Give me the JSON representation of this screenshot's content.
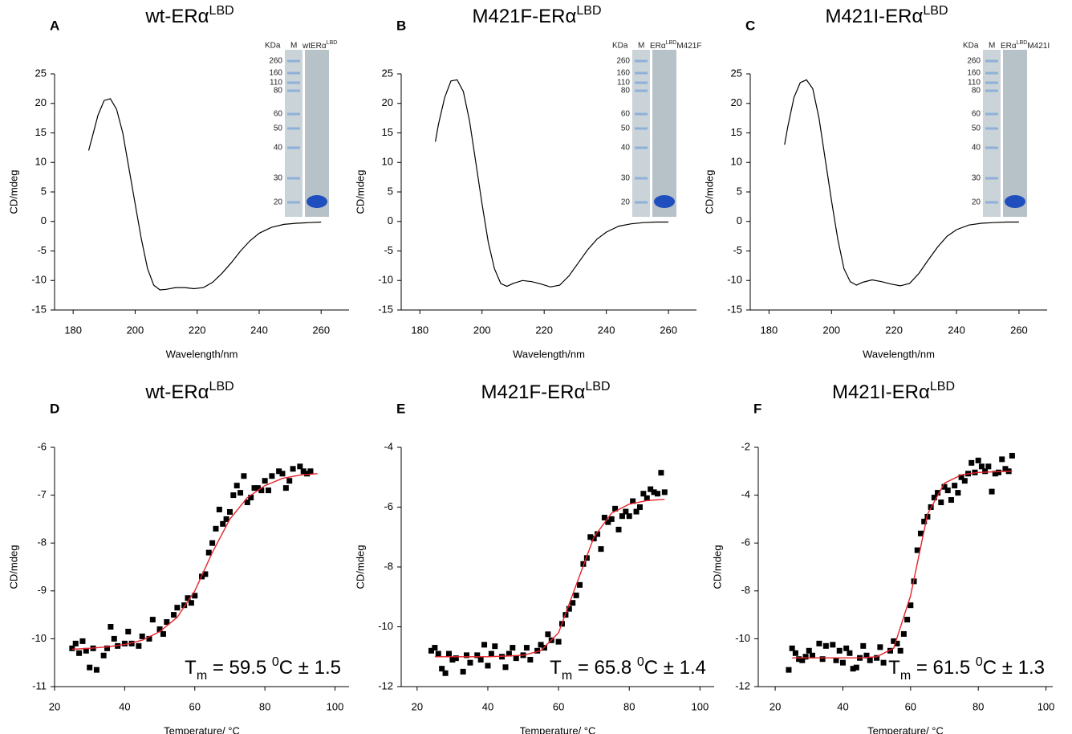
{
  "chart_data": [
    {
      "type": "line",
      "panel": "A",
      "title": {
        "parts": [
          "wt-ERα",
          "LBD"
        ],
        "styles": [
          "normal",
          "sup"
        ]
      },
      "x_label": "Wavelength/nm",
      "y_label": "CD/mdeg",
      "xlim": [
        174,
        269
      ],
      "xticks": [
        180,
        200,
        220,
        240,
        260
      ],
      "ylim": [
        -15,
        25
      ],
      "yticks": [
        -15,
        -10,
        -5,
        0,
        5,
        10,
        15,
        20,
        25
      ],
      "series": [
        {
          "color": "#000000",
          "x": [
            185,
            186,
            188,
            190,
            192,
            194,
            196,
            198,
            200,
            202,
            204,
            206,
            208,
            210,
            213,
            216,
            219,
            222,
            225,
            228,
            231,
            234,
            237,
            240,
            244,
            248,
            252,
            256,
            260
          ],
          "values": [
            12,
            14,
            18,
            20.5,
            20.8,
            19,
            15,
            9,
            3,
            -3,
            -8,
            -10.8,
            -11.6,
            -11.5,
            -11.2,
            -11.2,
            -11.4,
            -11.2,
            -10.3,
            -8.8,
            -7,
            -5,
            -3.3,
            -2,
            -1,
            -0.5,
            -0.3,
            -0.2,
            -0.1
          ]
        }
      ],
      "inset": {
        "header": [
          "KDa",
          "M"
        ],
        "lane": {
          "parts": [
            "wtERα",
            "LBD"
          ],
          "styles": [
            "normal",
            "sup"
          ]
        },
        "markers": [
          "260",
          "160",
          "110",
          "80",
          "60",
          "50",
          "40",
          "30",
          "20"
        ]
      }
    },
    {
      "type": "line",
      "panel": "B",
      "title": {
        "parts": [
          "M421F-ERα",
          "LBD"
        ],
        "styles": [
          "normal",
          "sup"
        ]
      },
      "x_label": "Wavelength/nm",
      "y_label": "CD/mdeg",
      "xlim": [
        174,
        269
      ],
      "xticks": [
        180,
        200,
        220,
        240,
        260
      ],
      "ylim": [
        -15,
        25
      ],
      "yticks": [
        -15,
        -10,
        -5,
        0,
        5,
        10,
        15,
        20,
        25
      ],
      "series": [
        {
          "color": "#000000",
          "x": [
            185,
            186,
            188,
            190,
            192,
            194,
            196,
            198,
            200,
            202,
            204,
            206,
            208,
            210,
            213,
            216,
            219,
            222,
            225,
            228,
            231,
            234,
            237,
            240,
            244,
            248,
            252,
            256,
            260
          ],
          "values": [
            13.5,
            16.5,
            21,
            23.8,
            24,
            22,
            17,
            10,
            3,
            -3.5,
            -8,
            -10.5,
            -11,
            -10.5,
            -10,
            -10.2,
            -10.6,
            -11.1,
            -10.8,
            -9.2,
            -7,
            -4.8,
            -3,
            -1.8,
            -0.8,
            -0.4,
            -0.2,
            -0.1,
            -0.1
          ]
        }
      ],
      "inset": {
        "header": [
          "KDa",
          "M"
        ],
        "lane": {
          "parts": [
            "ERα",
            "LBD",
            "M421F"
          ],
          "styles": [
            "normal",
            "sup",
            "normal"
          ]
        },
        "markers": [
          "260",
          "160",
          "110",
          "80",
          "60",
          "50",
          "40",
          "30",
          "20"
        ]
      }
    },
    {
      "type": "line",
      "panel": "C",
      "title": {
        "parts": [
          "M421I-ERα",
          "LBD"
        ],
        "styles": [
          "normal",
          "sup"
        ]
      },
      "x_label": "Wavelength/nm",
      "y_label": "CD/mdeg",
      "xlim": [
        174,
        269
      ],
      "xticks": [
        180,
        200,
        220,
        240,
        260
      ],
      "ylim": [
        -15,
        25
      ],
      "yticks": [
        -15,
        -10,
        -5,
        0,
        5,
        10,
        15,
        20,
        25
      ],
      "series": [
        {
          "color": "#000000",
          "x": [
            185,
            186,
            188,
            190,
            192,
            194,
            196,
            198,
            200,
            202,
            204,
            206,
            208,
            210,
            213,
            216,
            219,
            222,
            225,
            228,
            231,
            234,
            237,
            240,
            244,
            248,
            252,
            256,
            260
          ],
          "values": [
            13,
            16,
            21,
            23.5,
            24,
            22.5,
            17.5,
            10.5,
            3.5,
            -3,
            -8,
            -10.2,
            -10.8,
            -10.3,
            -9.9,
            -10.2,
            -10.6,
            -10.9,
            -10.5,
            -8.8,
            -6.5,
            -4.3,
            -2.5,
            -1.4,
            -0.6,
            -0.3,
            -0.2,
            -0.1,
            -0.1
          ]
        }
      ],
      "inset": {
        "header": [
          "KDa",
          "M"
        ],
        "lane": {
          "parts": [
            "ERα",
            "LBD",
            "M421I"
          ],
          "styles": [
            "normal",
            "sup",
            "normal"
          ]
        },
        "markers": [
          "260",
          "160",
          "110",
          "80",
          "60",
          "50",
          "40",
          "30",
          "20"
        ]
      }
    },
    {
      "type": "scatter",
      "panel": "D",
      "title": {
        "parts": [
          "wt-ERα",
          "LBD"
        ],
        "styles": [
          "normal",
          "sup"
        ]
      },
      "x_label": "Temperature/ °C",
      "y_label": "CD/mdeg",
      "xlim": [
        20,
        104
      ],
      "xticks": [
        20,
        40,
        60,
        80,
        100
      ],
      "ylim": [
        -11,
        -6
      ],
      "yticks": [
        -11,
        -10,
        -9,
        -8,
        -7,
        -6
      ],
      "annotation": {
        "parts": [
          "T",
          "m",
          " = 59.5 ",
          "0",
          "C ± 1.5"
        ],
        "styles": [
          "normal",
          "sub",
          "normal",
          "sup",
          "normal"
        ]
      },
      "series": [
        {
          "style": "points",
          "color": "#000000",
          "x": [
            25,
            26,
            27,
            28,
            29,
            30,
            31,
            32,
            34,
            35,
            36,
            37,
            38,
            40,
            41,
            42,
            44,
            45,
            47,
            48,
            50,
            51,
            52,
            54,
            55,
            57,
            58,
            59,
            60,
            62,
            63,
            64,
            65,
            66,
            67,
            68,
            69,
            70,
            71,
            72,
            73,
            74,
            75,
            76,
            77,
            78,
            79,
            80,
            81,
            82,
            84,
            85,
            86,
            87,
            88,
            90,
            91,
            92,
            93
          ],
          "values": [
            -10.2,
            -10.1,
            -10.3,
            -10.05,
            -10.25,
            -10.6,
            -10.2,
            -10.65,
            -10.35,
            -10.2,
            -9.75,
            -10,
            -10.15,
            -10.1,
            -9.85,
            -10.1,
            -10.15,
            -9.95,
            -10,
            -9.6,
            -9.8,
            -9.9,
            -9.65,
            -9.5,
            -9.35,
            -9.3,
            -9.15,
            -9.25,
            -9.1,
            -8.7,
            -8.65,
            -8.2,
            -8,
            -7.7,
            -7.3,
            -7.6,
            -7.5,
            -7.35,
            -7,
            -6.8,
            -6.95,
            -6.6,
            -7.15,
            -7.05,
            -6.85,
            -6.85,
            -6.9,
            -6.7,
            -6.9,
            -6.6,
            -6.5,
            -6.55,
            -6.85,
            -6.7,
            -6.45,
            -6.4,
            -6.5,
            -6.55,
            -6.5
          ]
        },
        {
          "style": "line",
          "color": "#e8232a",
          "x": [
            25,
            30,
            35,
            40,
            45,
            50,
            55,
            60,
            65,
            70,
            75,
            80,
            85,
            90,
            95
          ],
          "values": [
            -10.22,
            -10.2,
            -10.17,
            -10.12,
            -10.03,
            -9.85,
            -9.55,
            -9,
            -8.2,
            -7.5,
            -7.05,
            -6.8,
            -6.65,
            -6.58,
            -6.55
          ]
        }
      ]
    },
    {
      "type": "scatter",
      "panel": "E",
      "title": {
        "parts": [
          "M421F-ERα",
          "LBD"
        ],
        "styles": [
          "normal",
          "sup"
        ]
      },
      "x_label": "Temperature/ °C",
      "y_label": "CD/mdeg",
      "xlim": [
        15.5,
        104
      ],
      "xticks": [
        20,
        40,
        60,
        80,
        100
      ],
      "ylim": [
        -12,
        -4
      ],
      "yticks": [
        -12,
        -10,
        -8,
        -6,
        -4
      ],
      "annotation": {
        "parts": [
          "T",
          "m",
          " = 65.8 ",
          "0",
          "C ± 1.4"
        ],
        "styles": [
          "normal",
          "sub",
          "normal",
          "sup",
          "normal"
        ]
      },
      "series": [
        {
          "style": "points",
          "color": "#000000",
          "x": [
            24,
            25,
            26,
            27,
            28,
            29,
            30,
            31,
            33,
            34,
            35,
            37,
            38,
            39,
            40,
            41,
            42,
            44,
            45,
            46,
            47,
            48,
            50,
            51,
            52,
            54,
            55,
            56,
            57,
            58,
            60,
            61,
            62,
            63,
            64,
            65,
            66,
            67,
            68,
            69,
            70,
            71,
            72,
            73,
            74,
            75,
            76,
            77,
            78,
            79,
            80,
            81,
            82,
            83,
            84,
            85,
            86,
            87,
            88,
            89,
            90
          ],
          "values": [
            -10.8,
            -10.7,
            -10.9,
            -11.4,
            -11.55,
            -10.9,
            -11.1,
            -11.05,
            -11.5,
            -10.95,
            -11.2,
            -10.95,
            -11.1,
            -10.6,
            -11.3,
            -10.9,
            -10.65,
            -11,
            -11.35,
            -10.9,
            -10.7,
            -11.05,
            -10.95,
            -10.7,
            -11.1,
            -10.8,
            -10.6,
            -10.7,
            -10.25,
            -10.45,
            -10.5,
            -9.9,
            -9.6,
            -9.4,
            -9.2,
            -8.95,
            -8.6,
            -7.9,
            -7.7,
            -7,
            -7.05,
            -6.9,
            -7.4,
            -6.35,
            -6.5,
            -6.4,
            -6.05,
            -6.75,
            -6.3,
            -6.15,
            -6.3,
            -5.8,
            -6.15,
            -6,
            -5.55,
            -5.7,
            -5.4,
            -5.5,
            -5.55,
            -4.85,
            -5.5
          ]
        },
        {
          "style": "line",
          "color": "#e8232a",
          "x": [
            25,
            30,
            35,
            40,
            45,
            50,
            55,
            60,
            65,
            70,
            75,
            80,
            85,
            90
          ],
          "values": [
            -11,
            -11,
            -11,
            -11,
            -10.98,
            -10.95,
            -10.8,
            -10.2,
            -8.6,
            -7,
            -6.2,
            -5.9,
            -5.78,
            -5.74
          ]
        }
      ]
    },
    {
      "type": "scatter",
      "panel": "F",
      "title": {
        "parts": [
          "M421I-ERα",
          "LBD"
        ],
        "styles": [
          "normal",
          "sup"
        ]
      },
      "x_label": "Temperature/ °C",
      "y_label": "CD/mdeg",
      "xlim": [
        15,
        102
      ],
      "xticks": [
        20,
        40,
        60,
        80,
        100
      ],
      "ylim": [
        -12,
        -2
      ],
      "yticks": [
        -12,
        -10,
        -8,
        -6,
        -4,
        -2
      ],
      "annotation": {
        "parts": [
          "T",
          "m",
          " = 61.5 ",
          "0",
          "C ± 1.3"
        ],
        "styles": [
          "normal",
          "sub",
          "normal",
          "sup",
          "normal"
        ]
      },
      "series": [
        {
          "style": "points",
          "color": "#000000",
          "x": [
            24,
            25,
            26,
            27,
            28,
            29,
            30,
            31,
            33,
            34,
            35,
            37,
            38,
            39,
            40,
            41,
            42,
            43,
            44,
            45,
            46,
            47,
            48,
            50,
            51,
            52,
            54,
            55,
            56,
            57,
            58,
            59,
            60,
            61,
            62,
            63,
            64,
            65,
            66,
            67,
            68,
            69,
            70,
            71,
            72,
            73,
            74,
            75,
            76,
            77,
            78,
            79,
            80,
            81,
            82,
            83,
            84,
            85,
            86,
            87,
            88,
            89,
            90
          ],
          "values": [
            -11.3,
            -10.4,
            -10.6,
            -10.85,
            -10.9,
            -10.75,
            -10.5,
            -10.7,
            -10.2,
            -10.85,
            -10.3,
            -10.25,
            -10.9,
            -10.5,
            -11,
            -10.4,
            -10.6,
            -11.25,
            -11.2,
            -10.8,
            -10.3,
            -10.7,
            -10.9,
            -10.8,
            -10.35,
            -11,
            -10.5,
            -10.1,
            -10.2,
            -10.5,
            -9.8,
            -9.2,
            -8.6,
            -7.6,
            -6.3,
            -5.6,
            -5.1,
            -4.9,
            -4.5,
            -4.1,
            -3.9,
            -4.3,
            -3.65,
            -3.8,
            -4.2,
            -3.6,
            -3.9,
            -3.25,
            -3.4,
            -3.1,
            -2.65,
            -3.05,
            -2.55,
            -2.8,
            -3,
            -2.8,
            -3.85,
            -3.1,
            -3.05,
            -2.5,
            -2.9,
            -3,
            -2.35
          ]
        },
        {
          "style": "line",
          "color": "#e8232a",
          "x": [
            25,
            30,
            35,
            40,
            45,
            50,
            55,
            60,
            65,
            70,
            75,
            80,
            85,
            90
          ],
          "values": [
            -10.8,
            -10.8,
            -10.8,
            -10.8,
            -10.8,
            -10.75,
            -10.4,
            -8.2,
            -4.8,
            -3.5,
            -3.15,
            -3.05,
            -3.02,
            -3
          ]
        }
      ]
    }
  ]
}
